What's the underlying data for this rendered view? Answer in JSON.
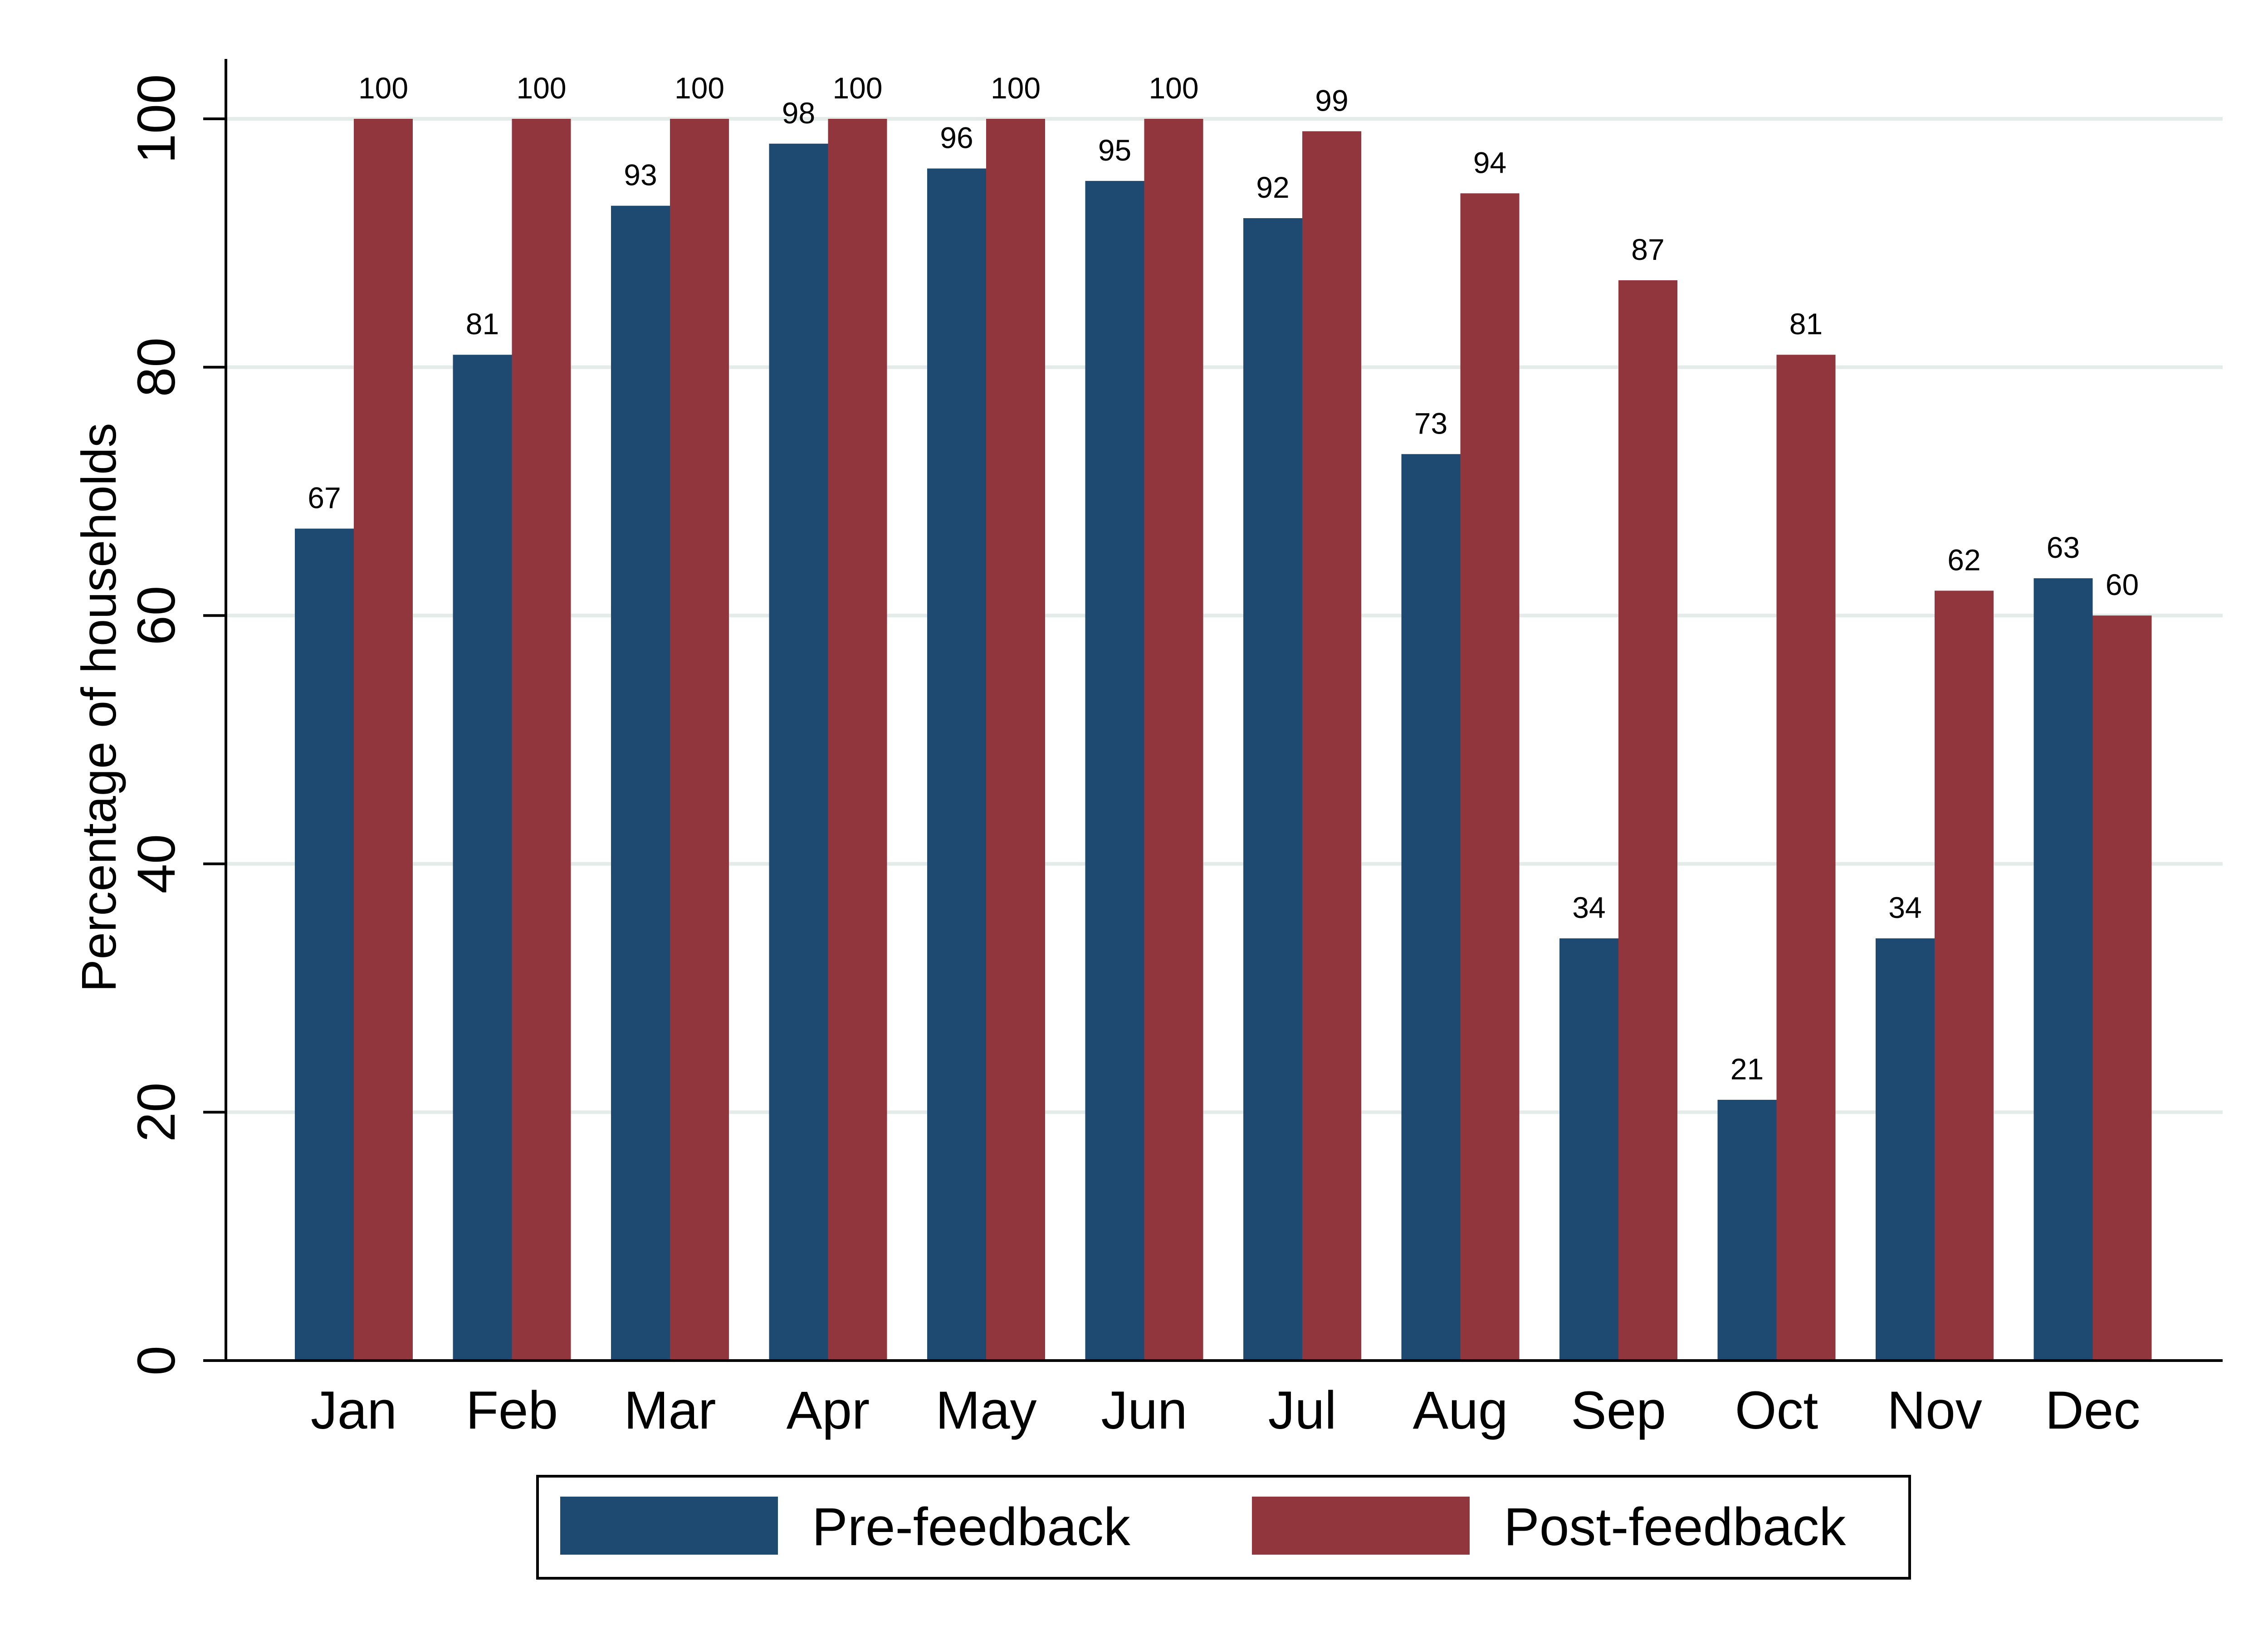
{
  "chart_data": {
    "type": "bar",
    "title": "",
    "xlabel": "",
    "ylabel": "Percentage of households",
    "ylim": [
      0,
      105
    ],
    "yticks": [
      0,
      20,
      40,
      60,
      80,
      100
    ],
    "grid": true,
    "legend_position": "bottom",
    "categories": [
      "Jan",
      "Feb",
      "Mar",
      "Apr",
      "May",
      "Jun",
      "Jul",
      "Aug",
      "Sep",
      "Oct",
      "Nov",
      "Dec"
    ],
    "series": [
      {
        "name": "Pre-feedback",
        "color": "#1e4a72",
        "values": [
          67,
          81,
          93,
          98,
          96,
          95,
          92,
          73,
          34,
          21,
          34,
          63
        ]
      },
      {
        "name": "Post-feedback",
        "color": "#92363d",
        "values": [
          100,
          100,
          100,
          100,
          100,
          100,
          99,
          94,
          87,
          81,
          62,
          60
        ]
      }
    ]
  }
}
